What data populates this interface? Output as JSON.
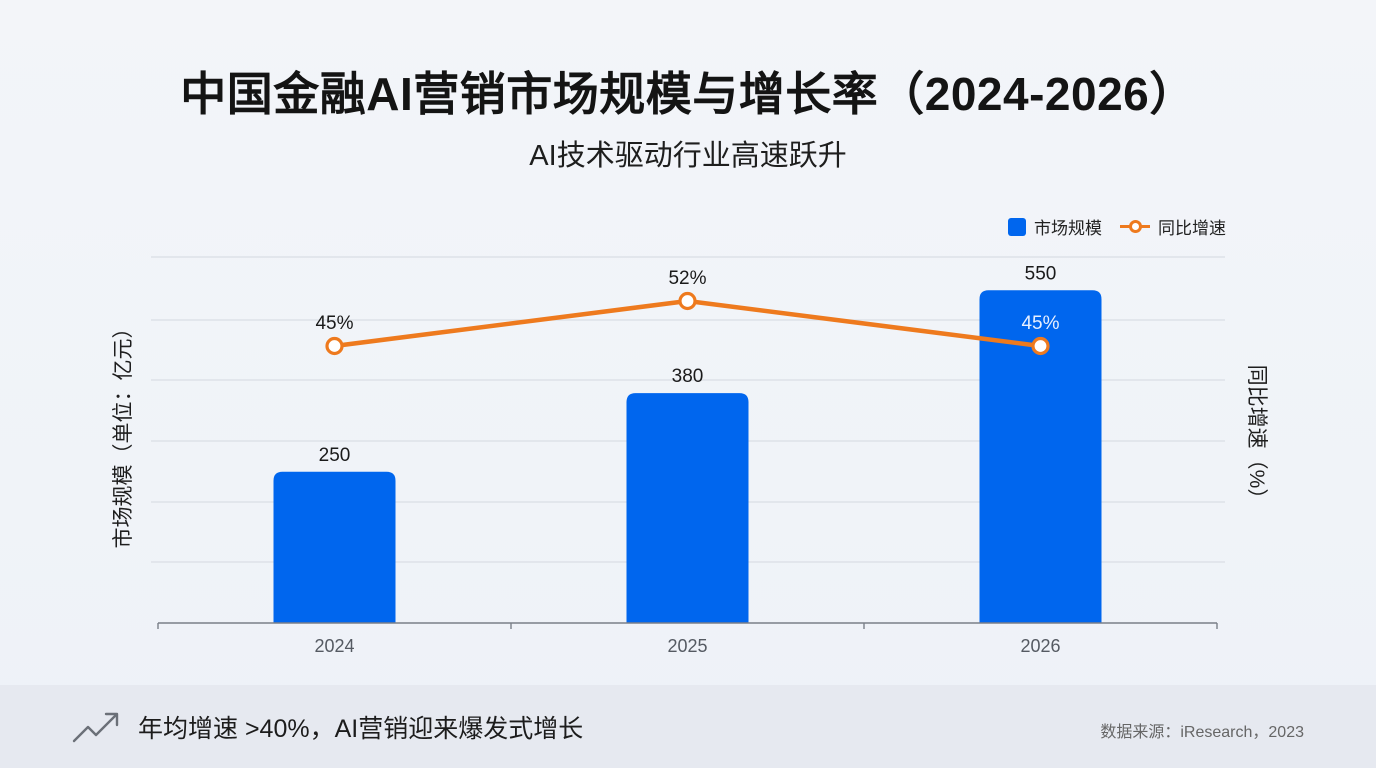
{
  "header": {
    "title": "中国金融AI营销市场规模与增长率（2024-2026）",
    "subtitle": "AI技术驱动行业高速跃升"
  },
  "legend": {
    "bar_label": "市场规模",
    "line_label": "同比增速"
  },
  "axes": {
    "y_left_label": "市场规模（单位：亿元）",
    "y_right_label": "同比增速（%）"
  },
  "footer": {
    "note": "年均增速 >40%，AI营销迎来爆发式增长",
    "note_icon": "trending-up-icon",
    "source": "数据来源：iResearch，2023"
  },
  "colors": {
    "bar": "#0066ee",
    "line": "#ee7a1e",
    "grid": "#d9dde4",
    "axis": "#7a7f88",
    "tick_label": "#555a62"
  },
  "chart_data": {
    "type": "bar+line",
    "title": "中国金融AI营销市场规模与增长率（2024-2026）",
    "subtitle": "AI技术驱动行业高速跃升",
    "categories": [
      "2024",
      "2025",
      "2026"
    ],
    "series": [
      {
        "name": "市场规模",
        "type": "bar",
        "axis": "left",
        "unit": "亿元",
        "values": [
          250,
          380,
          550
        ],
        "labels": [
          "250",
          "380",
          "550"
        ]
      },
      {
        "name": "同比增速",
        "type": "line",
        "axis": "right",
        "unit": "%",
        "values": [
          45,
          52,
          45
        ],
        "labels": [
          "45%",
          "52%",
          "45%"
        ]
      }
    ],
    "xlabel": "",
    "ylabel_left": "市场规模（单位：亿元）",
    "ylabel_right": "同比增速（%）",
    "grid": true,
    "legend_position": "top-right",
    "axis_tick_labels_shown": false
  }
}
